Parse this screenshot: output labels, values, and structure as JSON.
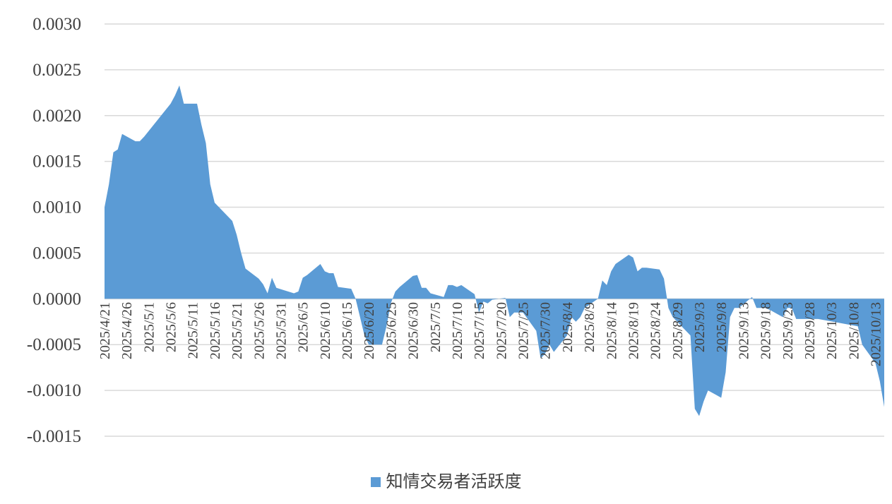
{
  "chart_data": {
    "type": "area",
    "title": "",
    "xlabel": "",
    "ylabel": "",
    "ylim": [
      -0.0015,
      0.003
    ],
    "yticks": [
      "0.0030",
      "0.0025",
      "0.0020",
      "0.0015",
      "0.0010",
      "0.0005",
      "0.0000",
      "-0.0005",
      "-0.0010",
      "-0.0015"
    ],
    "grid": true,
    "legend_position": "bottom",
    "color": "#5B9BD5",
    "x_tick_labels": [
      "2025/4/21",
      "2025/4/26",
      "2025/5/1",
      "2025/5/6",
      "2025/5/11",
      "2025/5/16",
      "2025/5/21",
      "2025/5/26",
      "2025/5/31",
      "2025/6/5",
      "2025/6/10",
      "2025/6/15",
      "2025/6/20",
      "2025/6/25",
      "2025/6/30",
      "2025/7/5",
      "2025/7/10",
      "2025/7/15",
      "2025/7/20",
      "2025/7/25",
      "2025/7/30",
      "2025/8/4",
      "2025/8/9",
      "2025/8/14",
      "2025/8/19",
      "2025/8/24",
      "2025/8/29",
      "2025/9/3",
      "2025/9/8",
      "2025/9/13",
      "2025/9/18",
      "2025/9/23",
      "2025/9/28",
      "2025/10/3",
      "2025/10/8",
      "2025/10/13"
    ],
    "series": [
      {
        "name": "知情交易者活跃度",
        "points": [
          [
            "2025/4/21",
            0.001
          ],
          [
            "2025/4/22",
            0.00125
          ],
          [
            "2025/4/23",
            0.0016
          ],
          [
            "2025/4/24",
            0.00163
          ],
          [
            "2025/4/25",
            0.0018
          ],
          [
            "2025/4/28",
            0.00172
          ],
          [
            "2025/4/29",
            0.00172
          ],
          [
            "2025/4/30",
            0.00177
          ],
          [
            "2025/5/6",
            0.00213
          ],
          [
            "2025/5/7",
            0.00222
          ],
          [
            "2025/5/8",
            0.00233
          ],
          [
            "2025/5/9",
            0.00213
          ],
          [
            "2025/5/12",
            0.00213
          ],
          [
            "2025/5/13",
            0.0019
          ],
          [
            "2025/5/14",
            0.0017
          ],
          [
            "2025/5/15",
            0.00125
          ],
          [
            "2025/5/16",
            0.00105
          ],
          [
            "2025/5/19",
            0.0009
          ],
          [
            "2025/5/20",
            0.00085
          ],
          [
            "2025/5/21",
            0.0007
          ],
          [
            "2025/5/22",
            0.0005
          ],
          [
            "2025/5/23",
            0.00033
          ],
          [
            "2025/5/26",
            0.00022
          ],
          [
            "2025/5/27",
            0.00016
          ],
          [
            "2025/5/28",
            6e-05
          ],
          [
            "2025/5/29",
            0.00023
          ],
          [
            "2025/5/30",
            0.00012
          ],
          [
            "2025/6/3",
            6e-05
          ],
          [
            "2025/6/4",
            8e-05
          ],
          [
            "2025/6/5",
            0.00023
          ],
          [
            "2025/6/6",
            0.00026
          ],
          [
            "2025/6/9",
            0.00038
          ],
          [
            "2025/6/10",
            0.0003
          ],
          [
            "2025/6/11",
            0.00028
          ],
          [
            "2025/6/12",
            0.00028
          ],
          [
            "2025/6/13",
            0.00013
          ],
          [
            "2025/6/16",
            0.00011
          ],
          [
            "2025/6/17",
            0.0
          ],
          [
            "2025/6/18",
            -0.0002
          ],
          [
            "2025/6/19",
            -0.0004
          ],
          [
            "2025/6/20",
            -0.0005
          ],
          [
            "2025/6/23",
            -0.0005
          ],
          [
            "2025/6/24",
            -0.0003
          ],
          [
            "2025/6/25",
            -5e-05
          ],
          [
            "2025/6/26",
            8e-05
          ],
          [
            "2025/6/27",
            0.00013
          ],
          [
            "2025/6/30",
            0.00025
          ],
          [
            "2025/7/1",
            0.00026
          ],
          [
            "2025/7/2",
            0.00012
          ],
          [
            "2025/7/3",
            0.00012
          ],
          [
            "2025/7/4",
            6e-05
          ],
          [
            "2025/7/7",
            2e-05
          ],
          [
            "2025/7/8",
            0.00015
          ],
          [
            "2025/7/9",
            0.00015
          ],
          [
            "2025/7/10",
            0.00013
          ],
          [
            "2025/7/11",
            0.00015
          ],
          [
            "2025/7/14",
            5e-05
          ],
          [
            "2025/7/15",
            -0.00015
          ],
          [
            "2025/7/16",
            -3e-05
          ],
          [
            "2025/7/17",
            -5e-05
          ],
          [
            "2025/7/18",
            -1e-05
          ],
          [
            "2025/7/21",
            1e-05
          ],
          [
            "2025/7/22",
            -0.0002
          ],
          [
            "2025/7/23",
            -0.00015
          ],
          [
            "2025/7/24",
            -0.00015
          ],
          [
            "2025/7/25",
            -0.00015
          ],
          [
            "2025/7/28",
            -0.00035
          ],
          [
            "2025/7/29",
            -0.00065
          ],
          [
            "2025/7/30",
            -0.0006
          ],
          [
            "2025/7/31",
            -0.0005
          ],
          [
            "2025/8/1",
            -0.00058
          ],
          [
            "2025/8/4",
            -0.0004
          ],
          [
            "2025/8/5",
            -0.0002
          ],
          [
            "2025/8/6",
            -0.00025
          ],
          [
            "2025/8/7",
            -0.0002
          ],
          [
            "2025/8/8",
            -0.0001
          ],
          [
            "2025/8/11",
            0.0
          ],
          [
            "2025/8/12",
            0.0002
          ],
          [
            "2025/8/13",
            0.00015
          ],
          [
            "2025/8/14",
            0.0003
          ],
          [
            "2025/8/15",
            0.00038
          ],
          [
            "2025/8/18",
            0.00048
          ],
          [
            "2025/8/19",
            0.00045
          ],
          [
            "2025/8/20",
            0.0003
          ],
          [
            "2025/8/21",
            0.00034
          ],
          [
            "2025/8/22",
            0.00034
          ],
          [
            "2025/8/25",
            0.00032
          ],
          [
            "2025/8/26",
            0.00022
          ],
          [
            "2025/8/27",
            -0.0001
          ],
          [
            "2025/8/28",
            -0.0002
          ],
          [
            "2025/8/29",
            -0.00025
          ],
          [
            "2025/9/1",
            -0.0004
          ],
          [
            "2025/9/2",
            -0.0012
          ],
          [
            "2025/9/3",
            -0.00128
          ],
          [
            "2025/9/4",
            -0.00112
          ],
          [
            "2025/9/5",
            -0.001
          ],
          [
            "2025/9/8",
            -0.00108
          ],
          [
            "2025/9/9",
            -0.0008
          ],
          [
            "2025/9/10",
            -0.0002
          ],
          [
            "2025/9/11",
            -0.0001
          ],
          [
            "2025/9/12",
            -0.0001
          ],
          [
            "2025/9/15",
            2e-05
          ],
          [
            "2025/9/16",
            -0.0001
          ],
          [
            "2025/9/17",
            -0.0001
          ],
          [
            "2025/9/18",
            -0.0001
          ],
          [
            "2025/9/19",
            -0.00012
          ],
          [
            "2025/9/22",
            -0.0002
          ],
          [
            "2025/9/23",
            -0.0001
          ],
          [
            "2025/9/24",
            -0.0001
          ],
          [
            "2025/9/25",
            -0.00022
          ],
          [
            "2025/9/26",
            -0.00022
          ],
          [
            "2025/9/29",
            -0.00022
          ],
          [
            "2025/9/30",
            -0.00022
          ],
          [
            "2025/10/9",
            -0.0003
          ],
          [
            "2025/10/10",
            -0.0005
          ],
          [
            "2025/10/13",
            -0.0007
          ],
          [
            "2025/10/14",
            -0.0009
          ],
          [
            "2025/10/15",
            -0.00118
          ]
        ]
      }
    ]
  }
}
